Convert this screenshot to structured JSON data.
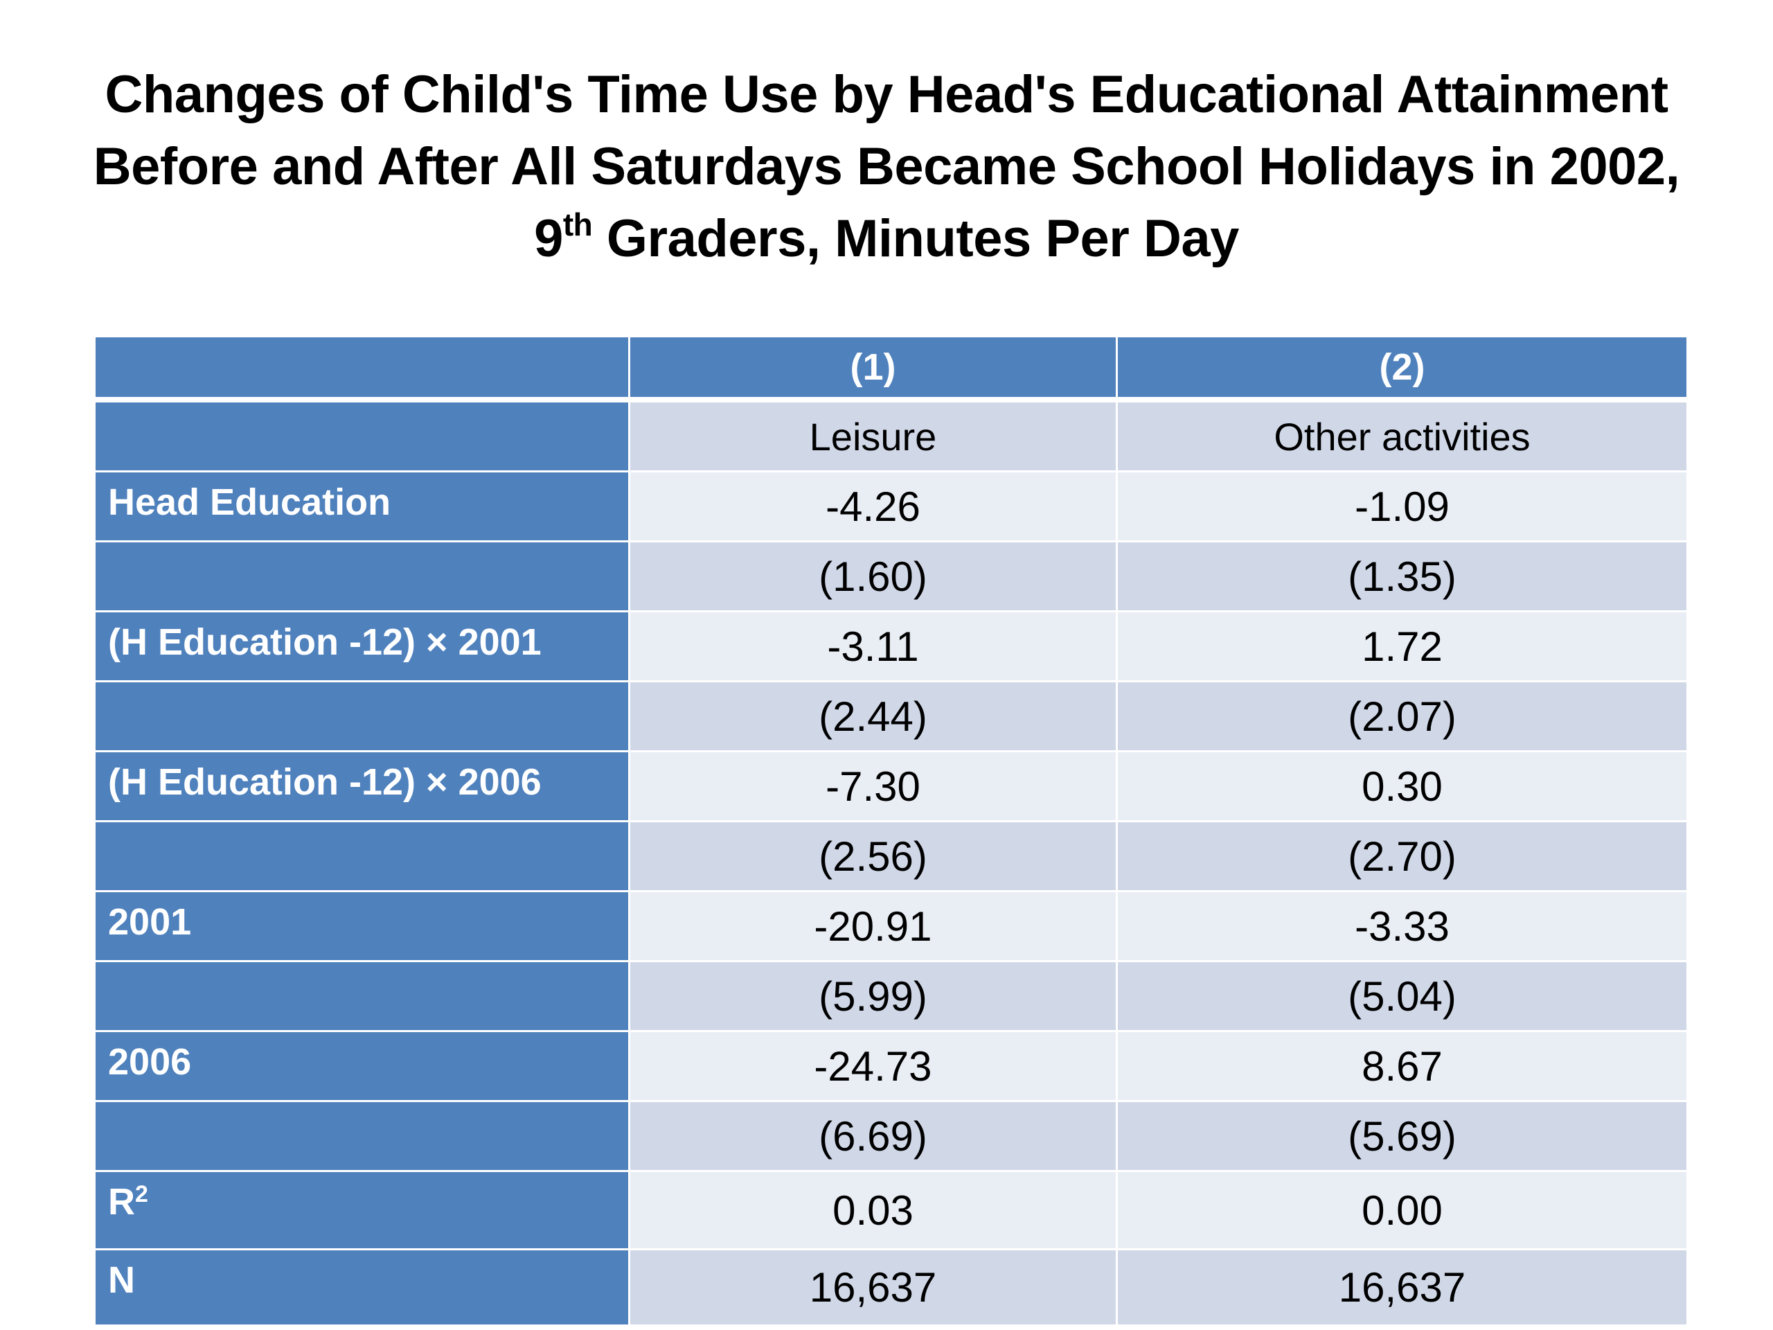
{
  "title": {
    "line1": "Changes of Child's Time Use by Head's Educational Attainment",
    "line2": "Before and After All Saturdays Became School Holidays in 2002,",
    "line3_prefix": "9",
    "line3_sup": "th",
    "line3_suffix": " Graders, Minutes Per Day"
  },
  "table": {
    "columns": [
      {
        "number": "(1)",
        "name": "Leisure"
      },
      {
        "number": "(2)",
        "name": "Other activities"
      }
    ],
    "rows": [
      {
        "label": "Head Education",
        "c1": "-4.26",
        "c2": "-1.09"
      },
      {
        "label": "",
        "c1": "(1.60)",
        "c2": "(1.35)"
      },
      {
        "label": "(H Education -12) × 2001",
        "c1": "-3.11",
        "c2": "1.72"
      },
      {
        "label": "",
        "c1": "(2.44)",
        "c2": "(2.07)"
      },
      {
        "label": "(H Education -12) × 2006",
        "c1": "-7.30",
        "c2": "0.30"
      },
      {
        "label": "",
        "c1": "(2.56)",
        "c2": "(2.70)"
      },
      {
        "label": "2001",
        "c1": "-20.91",
        "c2": "-3.33"
      },
      {
        "label": "",
        "c1": "(5.99)",
        "c2": "(5.04)"
      },
      {
        "label": "2006",
        "c1": "-24.73",
        "c2": "8.67"
      },
      {
        "label": "",
        "c1": "(6.69)",
        "c2": "(5.69)"
      }
    ],
    "r2_row": {
      "label_base": "R",
      "label_sup": "2",
      "c1": "0.03",
      "c2": "0.00"
    },
    "n_row": {
      "label": "N",
      "c1": "16,637",
      "c2": "16,637"
    }
  },
  "colors": {
    "header_blue": "#4f81bd",
    "row_light": "#e9edf4",
    "row_dark": "#d0d8e8"
  }
}
